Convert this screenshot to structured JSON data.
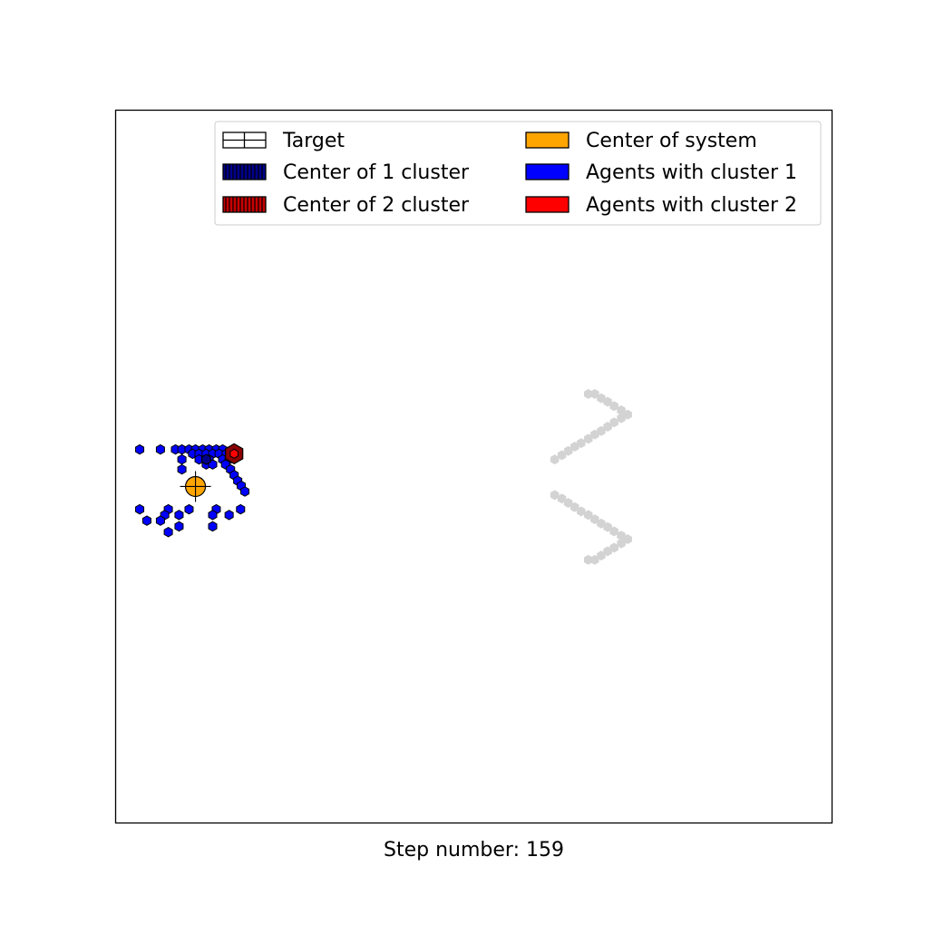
{
  "chart_data": {
    "type": "scatter",
    "title": "",
    "xlabel": "Step number: 159",
    "ylabel": "",
    "xlim": [
      0,
      100
    ],
    "ylim": [
      0,
      100
    ],
    "grid": false,
    "legend": {
      "placement": "top-right",
      "columns": 2,
      "entries": [
        {
          "label": "Target",
          "swatch": "target"
        },
        {
          "label": "Center of 1 cluster",
          "swatch": "center1"
        },
        {
          "label": "Center of 2 cluster",
          "swatch": "center2"
        },
        {
          "label": "Center of system",
          "swatch": "system"
        },
        {
          "label": "Agents with cluster 1",
          "swatch": "agents1"
        },
        {
          "label": "Agents with cluster 2",
          "swatch": "agents2"
        }
      ]
    },
    "colors": {
      "target": "#d3d3d3",
      "cluster1": "#0000ff",
      "cluster1_center": "#00008b",
      "cluster2": "#ff0000",
      "cluster2_center": "#8b0000",
      "system_center": "#ffa500",
      "edge": "#000000"
    },
    "series": [
      {
        "name": "Target",
        "points": [
          [
            66.0,
            60.2
          ],
          [
            66.9,
            60.2
          ],
          [
            67.8,
            59.6
          ],
          [
            68.7,
            59.1
          ],
          [
            69.6,
            58.5
          ],
          [
            70.6,
            57.9
          ],
          [
            71.5,
            57.3
          ],
          [
            70.6,
            56.8
          ],
          [
            69.6,
            56.2
          ],
          [
            68.7,
            55.6
          ],
          [
            67.8,
            55.0
          ],
          [
            66.9,
            54.5
          ],
          [
            66.0,
            53.9
          ],
          [
            65.0,
            53.3
          ],
          [
            64.1,
            52.8
          ],
          [
            63.2,
            52.2
          ],
          [
            62.3,
            51.6
          ],
          [
            61.3,
            51.0
          ],
          [
            61.3,
            46.0
          ],
          [
            62.3,
            45.5
          ],
          [
            63.2,
            44.9
          ],
          [
            64.1,
            44.3
          ],
          [
            65.0,
            43.7
          ],
          [
            66.0,
            43.2
          ],
          [
            66.9,
            42.6
          ],
          [
            67.8,
            42.0
          ],
          [
            68.7,
            41.5
          ],
          [
            69.6,
            40.9
          ],
          [
            70.6,
            40.3
          ],
          [
            71.5,
            39.8
          ],
          [
            70.6,
            39.2
          ],
          [
            69.6,
            38.6
          ],
          [
            68.7,
            38.1
          ],
          [
            67.8,
            37.5
          ],
          [
            66.9,
            36.9
          ],
          [
            66.0,
            36.9
          ]
        ]
      },
      {
        "name": "Agents with cluster 1",
        "points": [
          [
            3.3,
            52.4
          ],
          [
            6.2,
            52.4
          ],
          [
            8.3,
            52.4
          ],
          [
            9.2,
            52.4
          ],
          [
            10.2,
            52.4
          ],
          [
            11.1,
            52.4
          ],
          [
            12.1,
            52.4
          ],
          [
            13.0,
            52.4
          ],
          [
            14.0,
            52.4
          ],
          [
            14.9,
            52.4
          ],
          [
            10.7,
            51.8
          ],
          [
            11.6,
            51.8
          ],
          [
            12.6,
            51.8
          ],
          [
            13.5,
            51.8
          ],
          [
            14.4,
            51.8
          ],
          [
            15.4,
            51.8
          ],
          [
            9.2,
            51.0
          ],
          [
            11.6,
            51.0
          ],
          [
            13.0,
            51.0
          ],
          [
            14.9,
            51.0
          ],
          [
            15.8,
            51.0
          ],
          [
            12.6,
            50.3
          ],
          [
            13.5,
            50.3
          ],
          [
            15.3,
            50.3
          ],
          [
            16.0,
            49.6
          ],
          [
            9.2,
            49.6
          ],
          [
            16.5,
            48.8
          ],
          [
            17.0,
            48.0
          ],
          [
            17.5,
            47.3
          ],
          [
            18.0,
            46.5
          ],
          [
            3.3,
            44.0
          ],
          [
            7.3,
            44.0
          ],
          [
            10.2,
            44.0
          ],
          [
            14.0,
            44.0
          ],
          [
            17.4,
            44.0
          ],
          [
            6.8,
            43.2
          ],
          [
            13.5,
            43.2
          ],
          [
            15.8,
            43.2
          ],
          [
            8.8,
            43.2
          ],
          [
            4.3,
            42.4
          ],
          [
            6.2,
            42.4
          ],
          [
            13.5,
            41.6
          ],
          [
            8.8,
            41.6
          ],
          [
            7.3,
            40.8
          ]
        ]
      },
      {
        "name": "Center of 1 cluster",
        "points": [
          [
            12.6,
            51.0
          ]
        ]
      },
      {
        "name": "Center of 2 cluster",
        "points": [
          [
            16.5,
            51.8
          ]
        ]
      },
      {
        "name": "Agents with cluster 2",
        "points": [
          [
            16.5,
            51.8
          ]
        ]
      },
      {
        "name": "Center of system",
        "points": [
          [
            11.1,
            47.2
          ]
        ]
      }
    ]
  }
}
